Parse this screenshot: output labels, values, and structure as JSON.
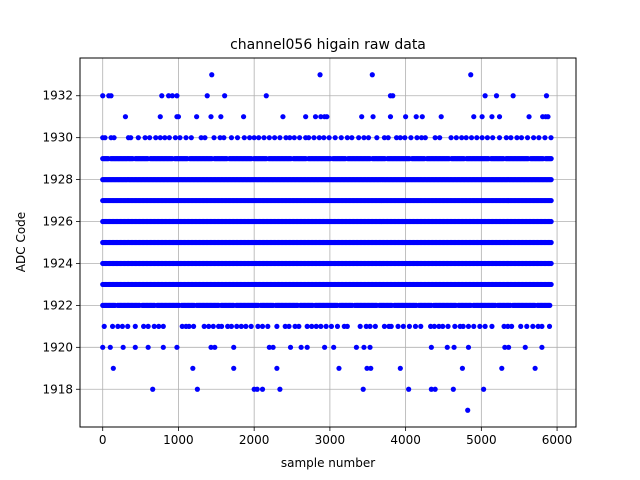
{
  "chart_data": {
    "type": "scatter",
    "title": "channel056 higain raw data",
    "xlabel": "sample number",
    "ylabel": "ADC Code",
    "xlim": [
      -300,
      6250
    ],
    "ylim": [
      1916.2,
      1933.8
    ],
    "xticks": [
      0,
      1000,
      2000,
      3000,
      4000,
      5000,
      6000
    ],
    "yticks": [
      1918,
      1920,
      1922,
      1924,
      1926,
      1928,
      1930,
      1932
    ],
    "grid": true,
    "marker_color": "#0000ff",
    "sample_count": 5930,
    "dense_rows": [
      {
        "y": 1923,
        "from": 0,
        "to": 5930
      },
      {
        "y": 1924,
        "from": 0,
        "to": 5930
      },
      {
        "y": 1925,
        "from": 0,
        "to": 5930
      },
      {
        "y": 1926,
        "from": 0,
        "to": 5930
      },
      {
        "y": 1927,
        "from": 0,
        "to": 5930
      },
      {
        "y": 1928,
        "from": 0,
        "to": 5930
      }
    ],
    "medium_rows": [
      {
        "y": 1922,
        "from": 0,
        "to": 5930
      },
      {
        "y": 1929,
        "from": 0,
        "to": 5930
      }
    ],
    "sparse_rows": [
      {
        "y": 1921,
        "x": [
          20,
          130,
          200,
          260,
          330,
          430,
          540,
          600,
          680,
          740,
          800,
          1050,
          1100,
          1140,
          1200,
          1340,
          1400,
          1460,
          1530,
          1570,
          1650,
          1700,
          1770,
          1830,
          1890,
          1960,
          2050,
          2110,
          2180,
          2300,
          2410,
          2460,
          2540,
          2590,
          2700,
          2760,
          2820,
          2880,
          2950,
          3020,
          3100,
          3190,
          3230,
          3400,
          3480,
          3530,
          3600,
          3720,
          3780,
          3810,
          3900,
          3970,
          4050,
          4130,
          4200,
          4330,
          4380,
          4440,
          4490,
          4560,
          4650,
          4720,
          4760,
          4830,
          4900,
          4980,
          5050,
          5140,
          5300,
          5350,
          5400,
          5520,
          5600,
          5680,
          5750,
          5800,
          5900
        ]
      },
      {
        "y": 1930,
        "x": [
          0,
          30,
          110,
          150,
          340,
          370,
          470,
          560,
          620,
          700,
          760,
          820,
          880,
          960,
          1020,
          1100,
          1170,
          1300,
          1350,
          1470,
          1550,
          1600,
          1700,
          1780,
          1870,
          1940,
          2000,
          2060,
          2130,
          2200,
          2270,
          2340,
          2420,
          2470,
          2530,
          2600,
          2680,
          2720,
          2790,
          2860,
          2920,
          2990,
          3070,
          3150,
          3230,
          3290,
          3380,
          3450,
          3510,
          3620,
          3720,
          3770,
          3880,
          3930,
          3990,
          4070,
          4150,
          4210,
          4260,
          4390,
          4450,
          4600,
          4670,
          4740,
          4800,
          4870,
          4940,
          5010,
          5080,
          5150,
          5240,
          5330,
          5390,
          5470,
          5530,
          5610,
          5690,
          5760,
          5840,
          5920
        ]
      },
      {
        "y": 1920,
        "x": [
          0,
          100,
          270,
          430,
          600,
          800,
          980,
          1430,
          1480,
          1730,
          2200,
          2250,
          2480,
          2620,
          2700,
          2930,
          3050,
          3350,
          3450,
          3530,
          4340,
          4550,
          4640,
          4830,
          5310,
          5360,
          5580,
          5800
        ]
      },
      {
        "y": 1931,
        "x": [
          300,
          760,
          980,
          1000,
          1240,
          1430,
          1560,
          1860,
          2380,
          2680,
          2810,
          2880,
          2930,
          2960,
          3420,
          3570,
          3800,
          4000,
          4140,
          4220,
          4470,
          4900,
          5010,
          5140,
          5240,
          5630,
          5810,
          5850,
          5880
        ]
      },
      {
        "y": 1919,
        "x": [
          140,
          1190,
          1730,
          2300,
          3120,
          3490,
          3540,
          3930,
          4750,
          5270,
          5710
        ]
      },
      {
        "y": 1932,
        "x": [
          0,
          80,
          110,
          780,
          870,
          920,
          980,
          1380,
          1610,
          2160,
          3800,
          3830,
          5050,
          5200,
          5420,
          5860
        ]
      },
      {
        "y": 1918,
        "x": [
          660,
          1250,
          2000,
          2040,
          2110,
          2340,
          3440,
          4040,
          4340,
          4390,
          4630,
          5030
        ]
      },
      {
        "y": 1933,
        "x": [
          1440,
          2870,
          3560,
          4860
        ]
      },
      {
        "y": 1917,
        "x": [
          4820
        ]
      }
    ]
  }
}
